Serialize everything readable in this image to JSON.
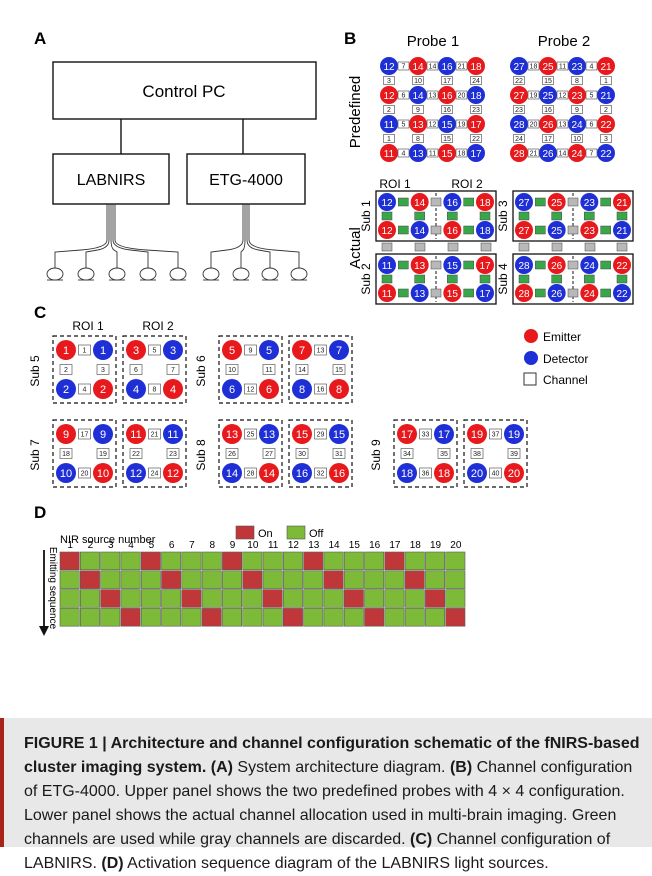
{
  "panels": {
    "A": {
      "letter": "A",
      "control_pc": "Control PC",
      "labnirs": "LABNIRS",
      "etg": "ETG-4000"
    },
    "B": {
      "letter": "B",
      "probe1": "Probe 1",
      "probe2": "Probe 2",
      "predefined": "Predefined",
      "actual": "Actual",
      "roi1": "ROI 1",
      "roi2": "ROI 2",
      "sub_labels": [
        "Sub 1",
        "Sub 2",
        "Sub 3",
        "Sub 4"
      ],
      "probe1_nodes": [
        [
          12,
          14,
          16,
          18
        ],
        [
          12,
          14,
          16,
          18
        ],
        [
          11,
          13,
          15,
          17
        ],
        [
          11,
          13,
          15,
          17
        ]
      ],
      "probe2_nodes": [
        [
          27,
          25,
          23,
          21
        ],
        [
          27,
          25,
          23,
          21
        ],
        [
          28,
          26,
          24,
          22
        ],
        [
          28,
          26,
          24,
          22
        ]
      ],
      "probe1_ch_h": [
        [
          7,
          14,
          21
        ],
        [
          6,
          13,
          20
        ],
        [
          5,
          12,
          19
        ],
        [
          4,
          11,
          18
        ]
      ],
      "probe1_ch_v": [
        [
          3,
          10,
          17,
          24
        ],
        [
          2,
          9,
          16,
          23
        ],
        [
          1,
          8,
          15,
          22
        ]
      ],
      "probe2_ch_h": [
        [
          18,
          11,
          4
        ],
        [
          19,
          12,
          5
        ],
        [
          20,
          13,
          6
        ],
        [
          21,
          14,
          7
        ]
      ],
      "probe2_ch_v": [
        [
          22,
          15,
          8,
          1
        ],
        [
          23,
          16,
          9,
          2
        ],
        [
          24,
          17,
          10,
          3
        ]
      ],
      "sub1_nodes": [
        [
          12,
          14,
          16,
          18
        ],
        [
          12,
          14,
          16,
          18
        ]
      ],
      "sub2_nodes": [
        [
          11,
          13,
          15,
          17
        ],
        [
          11,
          13,
          15,
          17
        ]
      ],
      "sub3_nodes": [
        [
          27,
          25,
          23,
          21
        ],
        [
          27,
          25,
          23,
          21
        ]
      ],
      "sub4_nodes": [
        [
          28,
          26,
          24,
          22
        ],
        [
          28,
          26,
          24,
          22
        ]
      ]
    },
    "C": {
      "letter": "C",
      "roi1": "ROI 1",
      "roi2": "ROI 2",
      "subs": [
        {
          "label": "Sub 5",
          "roi1": {
            "nodes": [
              1,
              1,
              2,
              2
            ],
            "ch": [
              1,
              2,
              3,
              4
            ]
          },
          "roi2": {
            "nodes": [
              3,
              3,
              4,
              4
            ],
            "ch": [
              5,
              6,
              7,
              8
            ]
          }
        },
        {
          "label": "Sub 6",
          "roi1": {
            "nodes": [
              5,
              5,
              6,
              6
            ],
            "ch": [
              9,
              10,
              11,
              12
            ]
          },
          "roi2": {
            "nodes": [
              7,
              7,
              8,
              8
            ],
            "ch": [
              13,
              14,
              15,
              16
            ]
          }
        },
        {
          "label": "Sub 7",
          "roi1": {
            "nodes": [
              9,
              9,
              10,
              10
            ],
            "ch": [
              17,
              18,
              19,
              20
            ]
          },
          "roi2": {
            "nodes": [
              11,
              11,
              12,
              12
            ],
            "ch": [
              21,
              22,
              23,
              24
            ]
          }
        },
        {
          "label": "Sub 8",
          "roi1": {
            "nodes": [
              13,
              13,
              14,
              14
            ],
            "ch": [
              25,
              26,
              27,
              28
            ]
          },
          "roi2": {
            "nodes": [
              15,
              15,
              16,
              16
            ],
            "ch": [
              29,
              30,
              31,
              32
            ]
          }
        },
        {
          "label": "Sub 9",
          "roi1": {
            "nodes": [
              17,
              17,
              18,
              18
            ],
            "ch": [
              33,
              34,
              35,
              36
            ]
          },
          "roi2": {
            "nodes": [
              19,
              19,
              20,
              20
            ],
            "ch": [
              37,
              38,
              39,
              40
            ]
          }
        }
      ],
      "legend": {
        "emitter": "Emitter",
        "detector": "Detector",
        "channel": "Channel"
      }
    },
    "D": {
      "letter": "D",
      "xlabel": "NIR source number",
      "ylabel": "Emitting sequence",
      "legend_on": "On",
      "legend_off": "Off",
      "sources": [
        1,
        2,
        3,
        4,
        5,
        6,
        7,
        8,
        9,
        10,
        11,
        12,
        13,
        14,
        15,
        16,
        17,
        18,
        19,
        20
      ],
      "on_matrix": [
        [
          1,
          0,
          0,
          0,
          1,
          0,
          0,
          0,
          1,
          0,
          0,
          0,
          1,
          0,
          0,
          0,
          1,
          0,
          0,
          0
        ],
        [
          0,
          1,
          0,
          0,
          0,
          1,
          0,
          0,
          0,
          1,
          0,
          0,
          0,
          1,
          0,
          0,
          0,
          1,
          0,
          0
        ],
        [
          0,
          0,
          1,
          0,
          0,
          0,
          1,
          0,
          0,
          0,
          1,
          0,
          0,
          0,
          1,
          0,
          0,
          0,
          1,
          0
        ],
        [
          0,
          0,
          0,
          1,
          0,
          0,
          0,
          1,
          0,
          0,
          0,
          1,
          0,
          0,
          0,
          1,
          0,
          0,
          0,
          1
        ]
      ]
    }
  },
  "colors": {
    "emitter": "#e8191c",
    "detector": "#1f2fd6",
    "on": "#c0373a",
    "off": "#7cba38",
    "used_channel": "#3aa64a",
    "discarded_channel": "#b8b8b8",
    "caption_bar": "#a82318",
    "caption_bg": "#e8e8e8"
  },
  "caption": {
    "title": "FIGURE 1 | Architecture and channel configuration schematic of the fNIRS-based cluster imaging system.",
    "A_label": "(A)",
    "A_text": " System architecture diagram. ",
    "B_label": "(B)",
    "B_text": " Channel configuration of ETG-4000. Upper panel shows the two predefined probes with 4 × 4 configuration. Lower panel shows the actual channel allocation used in multi-brain imaging. Green channels are used while gray channels are discarded. ",
    "C_label": "(C)",
    "C_text": " Channel configuration of LABNIRS. ",
    "D_label": "(D)",
    "D_text": " Activation sequence diagram of the LABNIRS light sources."
  }
}
